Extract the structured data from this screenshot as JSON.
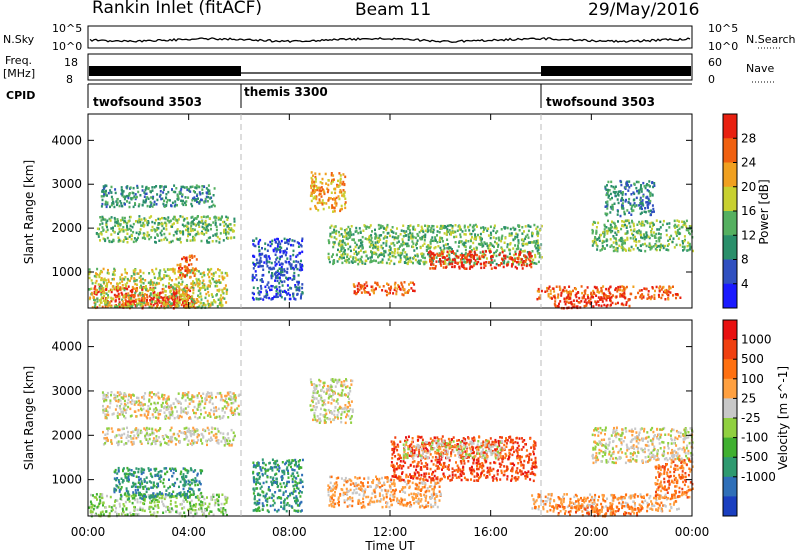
{
  "header": {
    "station": "Rankin Inlet (fitACF)",
    "beam": "Beam 11",
    "date": "29/May/2016"
  },
  "noise_panel": {
    "left_label": "N.Sky",
    "right_label": "N.Search",
    "tick_top": "10^5",
    "tick_bottom": "10^0"
  },
  "freq_panel": {
    "left_label_1": "Freq.",
    "left_label_2": "[MHz]",
    "right_label": "Nave",
    "left_ticks": [
      "18",
      "8"
    ],
    "right_ticks": [
      "60",
      "0"
    ]
  },
  "cpid_panel": {
    "label": "CPID",
    "segments": [
      {
        "name": "twofsound 3503",
        "start_h": 0,
        "end_h": 6
      },
      {
        "name": "themis 3300",
        "start_h": 6,
        "end_h": 18
      },
      {
        "name": "twofsound 3503",
        "start_h": 18,
        "end_h": 24
      }
    ]
  },
  "time_axis": {
    "label": "Time UT",
    "ticks": [
      "00:00",
      "04:00",
      "08:00",
      "12:00",
      "16:00",
      "20:00",
      "00:00"
    ]
  },
  "chart_data": [
    {
      "type": "heatmap",
      "title": "",
      "ylabel": "Slant Range [km]",
      "xlim": [
        0,
        24
      ],
      "ylim": [
        180,
        4600
      ],
      "yticks": [
        "1000",
        "2000",
        "3000",
        "4000"
      ],
      "colorbar": {
        "label": "Power [dB]",
        "ticks": [
          "4",
          "8",
          "12",
          "16",
          "20",
          "24",
          "28"
        ],
        "colors": [
          "#1a1aff",
          "#3050c0",
          "#2a8f6a",
          "#55b060",
          "#c8d030",
          "#f0a020",
          "#f06010",
          "#e82010"
        ]
      },
      "regions": [
        {
          "t0": 0.2,
          "t1": 4.2,
          "r0": 200,
          "r1": 700,
          "level": 7
        },
        {
          "t0": 1.5,
          "t1": 4.0,
          "r0": 250,
          "r1": 500,
          "level": 7
        },
        {
          "t0": 0.0,
          "t1": 5.5,
          "r0": 200,
          "r1": 1100,
          "level": 4
        },
        {
          "t0": 3.5,
          "t1": 4.3,
          "r0": 900,
          "r1": 1400,
          "level": 6
        },
        {
          "t0": 0.3,
          "t1": 5.8,
          "r0": 1700,
          "r1": 2300,
          "level": 3
        },
        {
          "t0": 0.5,
          "t1": 5.0,
          "r0": 2500,
          "r1": 3000,
          "level": 2
        },
        {
          "t0": 8.8,
          "t1": 10.2,
          "r0": 2400,
          "r1": 3300,
          "level": 5
        },
        {
          "t0": 9.5,
          "t1": 18.0,
          "r0": 1200,
          "r1": 2100,
          "level": 3
        },
        {
          "t0": 13.5,
          "t1": 17.6,
          "r0": 1100,
          "r1": 1500,
          "level": 7
        },
        {
          "t0": 10.5,
          "t1": 13.0,
          "r0": 500,
          "r1": 800,
          "level": 6
        },
        {
          "t0": 17.8,
          "t1": 23.5,
          "r0": 400,
          "r1": 700,
          "level": 6
        },
        {
          "t0": 18.5,
          "t1": 21.5,
          "r0": 200,
          "r1": 500,
          "level": 7
        },
        {
          "t0": 20.0,
          "t1": 24.0,
          "r0": 1500,
          "r1": 2200,
          "level": 3
        },
        {
          "t0": 20.5,
          "t1": 22.5,
          "r0": 2300,
          "r1": 3100,
          "level": 2
        },
        {
          "t0": 6.5,
          "t1": 8.5,
          "r0": 400,
          "r1": 1800,
          "level": 1
        }
      ]
    },
    {
      "type": "heatmap",
      "title": "",
      "ylabel": "Slant Range [km]",
      "xlim": [
        0,
        24
      ],
      "ylim": [
        180,
        4600
      ],
      "yticks": [
        "1000",
        "2000",
        "3000",
        "4000"
      ],
      "colorbar": {
        "label": "Velocity [m s^-1]",
        "ticks": [
          "1000",
          "500",
          "100",
          "25",
          "-25",
          "-100",
          "-500",
          "-1000"
        ],
        "colors": [
          "#1a3fc0",
          "#2f6fb8",
          "#2f9a70",
          "#40b030",
          "#90d040",
          "#c8c8c8",
          "#ffa040",
          "#ff7010",
          "#f04010",
          "#e81010"
        ]
      },
      "regions": [
        {
          "t0": 0.0,
          "t1": 5.5,
          "r0": 200,
          "r1": 700,
          "level": 4
        },
        {
          "t0": 1.0,
          "t1": 4.5,
          "r0": 600,
          "r1": 1300,
          "level": 2
        },
        {
          "t0": 0.5,
          "t1": 5.8,
          "r0": 1800,
          "r1": 2200,
          "level": 5
        },
        {
          "t0": 0.5,
          "t1": 6.0,
          "r0": 2400,
          "r1": 3000,
          "level": 5
        },
        {
          "t0": 8.8,
          "t1": 10.5,
          "r0": 2300,
          "r1": 3300,
          "level": 5
        },
        {
          "t0": 9.5,
          "t1": 14.0,
          "r0": 400,
          "r1": 1100,
          "level": 6
        },
        {
          "t0": 12.0,
          "t1": 17.8,
          "r0": 1000,
          "r1": 2000,
          "level": 8
        },
        {
          "t0": 12.5,
          "t1": 16.5,
          "r0": 1500,
          "r1": 1900,
          "level": 5
        },
        {
          "t0": 17.6,
          "t1": 23.5,
          "r0": 300,
          "r1": 700,
          "level": 6
        },
        {
          "t0": 18.5,
          "t1": 22.0,
          "r0": 200,
          "r1": 450,
          "level": 7
        },
        {
          "t0": 20.0,
          "t1": 24.0,
          "r0": 1400,
          "r1": 2200,
          "level": 5
        },
        {
          "t0": 22.5,
          "t1": 24.0,
          "r0": 600,
          "r1": 1500,
          "level": 7
        },
        {
          "t0": 6.5,
          "t1": 8.5,
          "r0": 300,
          "r1": 1500,
          "level": 2
        }
      ]
    }
  ]
}
